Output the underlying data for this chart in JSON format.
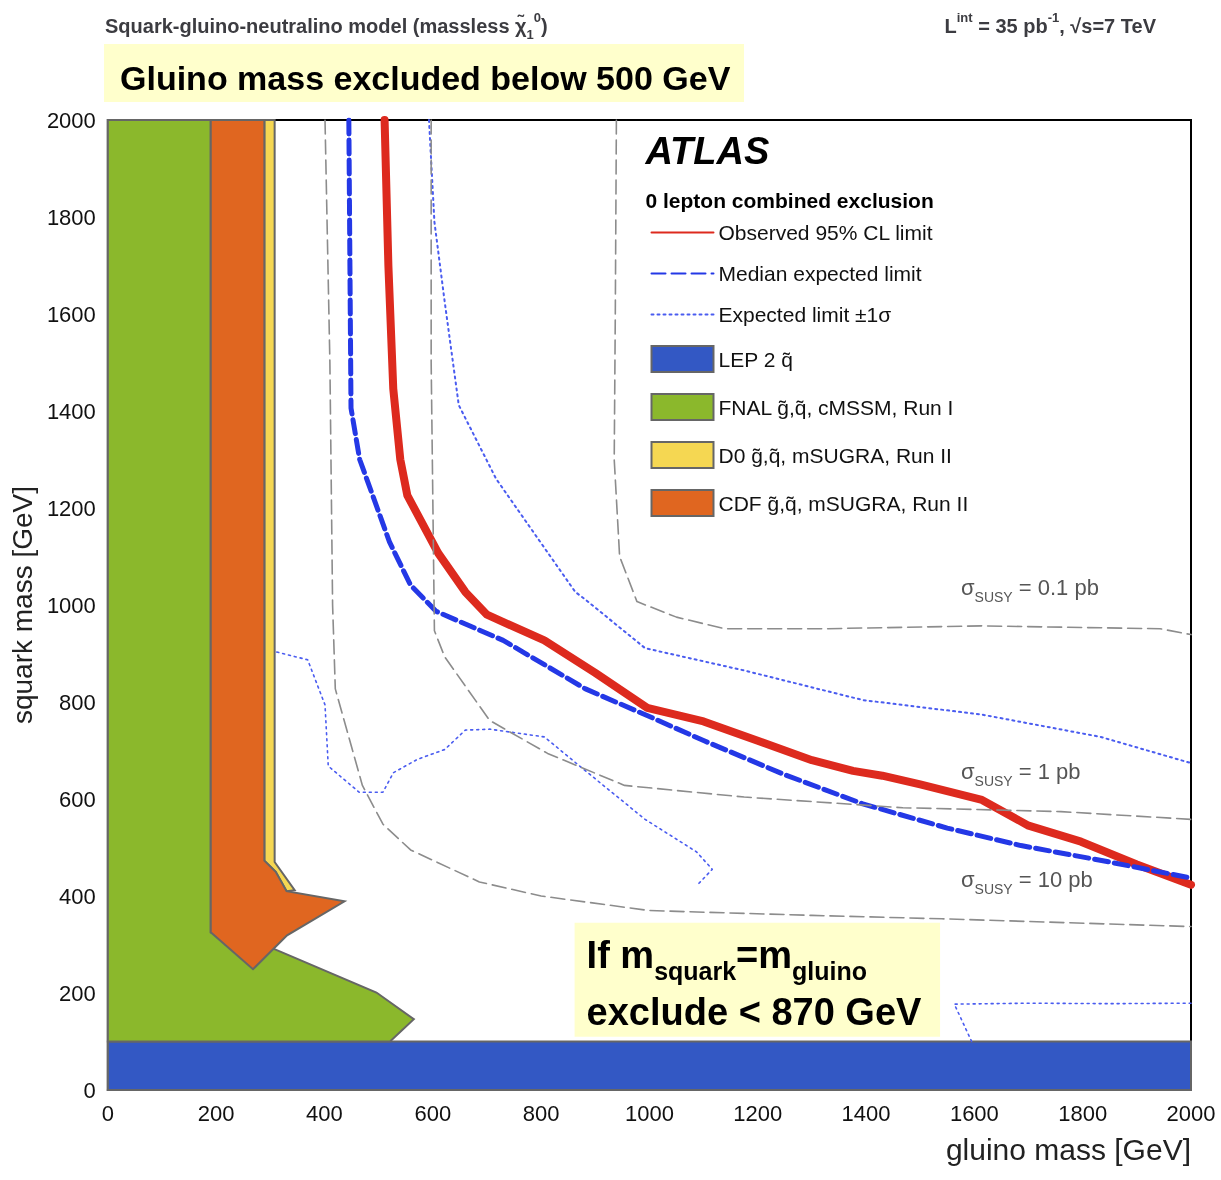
{
  "chart_data": {
    "type": "line",
    "title": "Squark-gluino-neutralino model (massless χ̃$_{1}$$^{0}$)",
    "subtitle": "L$^{int}$ = 35 pb$^{-1}$, √s=7 TeV",
    "xlabel": "gluino mass [GeV]",
    "ylabel": "squark mass [GeV]",
    "legend_title": "0 lepton combined exclusion",
    "xlim": [
      0,
      2000
    ],
    "ylim": [
      0,
      2000
    ],
    "xticks": [
      0,
      200,
      400,
      600,
      800,
      1000,
      1200,
      1400,
      1600,
      1800,
      2000
    ],
    "yticks": [
      0,
      200,
      400,
      600,
      800,
      1000,
      1200,
      1400,
      1600,
      1800,
      2000
    ],
    "grid": false,
    "legend": "top right",
    "marker": "none",
    "annotations": [
      "ATLAS",
      "Gluino mass excluded below 500 GeV",
      "If m$_{squark}$=m$_{gluino}$",
      "exclude < 870 GeV",
      "σ$_{SUSY}$ = 0.1 pb",
      "σ$_{SUSY}$ = 1 pb",
      "σ$_{SUSY}$ = 10 pb"
    ],
    "series": [
      {
        "name": "Observed 95% CL limit",
        "line_style": "solid",
        "color": "#dd2a1e",
        "x": [
          511,
          518,
          527,
          540,
          553,
          610,
          660,
          700,
          806,
          900,
          996,
          1100,
          1200,
          1300,
          1376,
          1430,
          1500,
          1614,
          1700,
          1797,
          1900,
          2000
        ],
        "values": [
          2000,
          1700,
          1446,
          1300,
          1226,
          1107,
          1027,
          980,
          927,
          860,
          788,
          760,
          720,
          680,
          658,
          648,
          630,
          598,
          545,
          512,
          465,
          423
        ]
      },
      {
        "name": "Median expected limit",
        "line_style": "dashed",
        "color": "#2438e6",
        "x": [
          445,
          447,
          449,
          465,
          489,
          520,
          559,
          606,
          730,
          882,
          1000,
          1101,
          1250,
          1394,
          1550,
          1686,
          1850,
          2000
        ],
        "values": [
          2000,
          1700,
          1406,
          1300,
          1226,
          1130,
          1041,
          987,
          927,
          827,
          770,
          720,
          650,
          590,
          540,
          504,
          470,
          437
        ]
      },
      {
        "name": "Expected limit ±1σ",
        "line_style": "dotted",
        "color": "#4a5cf0",
        "x": [
          593,
          603,
          622,
          648,
          717,
          863,
          882,
          992,
          1175,
          1394,
          1614,
          1833,
          2000
        ],
        "values": [
          2000,
          1790,
          1625,
          1412,
          1260,
          1027,
          1011,
          911,
          865,
          804,
          774,
          728,
          674
        ]
      },
      {
        "line_style": "dotted",
        "color": "#4a5cf0",
        "x": [
          312,
          369,
          401,
          407,
          464,
          508,
          527,
          572,
          622,
          660,
          705,
          806,
          882,
          992,
          1087,
          1116,
          1087,
          1300,
          1595,
          1563,
          1700,
          1850,
          2000
        ],
        "values": [
          903,
          887,
          794,
          668,
          614,
          614,
          654,
          682,
          702,
          742,
          744,
          728,
          658,
          558,
          491,
          455,
          421,
          null,
          100,
          177,
          179,
          178,
          179
        ]
      },
      {
        "line_style": "dashed",
        "color": "#8c8c8c",
        "x": [
          939,
          937,
          935,
          945,
          977,
          1050,
          1139,
          1321,
          1614,
          1943,
          2000
        ],
        "values": [
          2000,
          1600,
          1300,
          1100,
          1007,
          975,
          951,
          951,
          957,
          951,
          939
        ]
      },
      {
        "line_style": "dashed",
        "color": "#8c8c8c",
        "x": [
          597,
          597,
          603,
          622,
          705,
          812,
          954,
          1175,
          1468,
          1760,
          2000
        ],
        "values": [
          2000,
          1500,
          947,
          893,
          762,
          694,
          628,
          604,
          582,
          574,
          558
        ]
      },
      {
        "line_style": "dashed",
        "color": "#8c8c8c",
        "x": [
          401,
          410,
          415,
          420,
          470,
          508,
          559,
          686,
          800,
          1000,
          1300,
          1540,
          2000
        ],
        "values": [
          2000,
          1500,
          1000,
          827,
          628,
          548,
          495,
          429,
          400,
          370,
          360,
          353,
          337
        ]
      },
      {
        "name": "LEP 2 q̃",
        "type": "area",
        "color": "#3358c4",
        "x": [
          0,
          2000,
          2000,
          0
        ],
        "values": [
          0,
          0,
          100,
          100
        ]
      },
      {
        "name": "FNAL g̃,q̃, cMSSM, Run I",
        "type": "area",
        "color": "#8bb82c",
        "x": [
          0,
          0,
          190,
          190,
          298,
          496,
          565,
          521
        ],
        "values": [
          100,
          2000,
          2000,
          325,
          295,
          201,
          146,
          100
        ]
      },
      {
        "name": "D0 g̃,q̃, mSUGRA, Run II",
        "type": "area",
        "color": "#f5d752",
        "x": [
          289,
          308,
          308,
          345,
          330,
          310,
          289
        ],
        "values": [
          2000,
          2000,
          470,
          412,
          410,
          450,
          473
        ]
      },
      {
        "name": "CDF g̃,q̃, mSUGRA, Run II",
        "type": "area",
        "color": "#e06620",
        "x": [
          190,
          289,
          289,
          310,
          330,
          437,
          331,
          268,
          190
        ],
        "values": [
          2000,
          2000,
          473,
          450,
          410,
          389,
          319,
          249,
          325
        ]
      }
    ]
  }
}
